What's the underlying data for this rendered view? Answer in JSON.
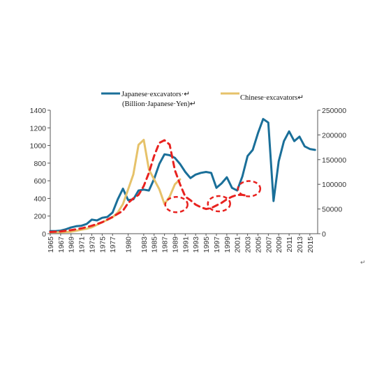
{
  "chart_data": {
    "type": "line",
    "legend": {
      "japanese_label": "Japanese·excavators·↵",
      "japanese_sublabel": "(Billion·Japanese·Yen)↵",
      "chinese_label": "Chinese·excavators↵",
      "placement": "top"
    },
    "categories": [
      "1965",
      "1967",
      "1969",
      "1971",
      "1973",
      "1975",
      "1977",
      "1980",
      "1983",
      "1985",
      "1987",
      "1989",
      "1991",
      "1993",
      "1995",
      "1997",
      "1999",
      "2001",
      "2003",
      "2005",
      "2007",
      "2009",
      "2011",
      "2013",
      "2015"
    ],
    "y_left": {
      "min": 0,
      "max": 1400,
      "ticks": [
        "0",
        "200",
        "400",
        "600",
        "800",
        "1000",
        "1200",
        "1400"
      ]
    },
    "y_right": {
      "min": 0,
      "max": 250000,
      "ticks": [
        "0",
        "50000",
        "100000",
        "150000",
        "200000",
        "250000"
      ]
    },
    "grid": false,
    "series": [
      {
        "name": "Japanese excavators (Billion Japanese Yen)",
        "axis": "left",
        "color": "#1a6f99",
        "x": [
          1965,
          1966,
          1967,
          1968,
          1969,
          1970,
          1971,
          1972,
          1973,
          1974,
          1975,
          1976,
          1977,
          1978,
          1979,
          1980,
          1981,
          1982,
          1983,
          1984,
          1985,
          1986,
          1987,
          1988,
          1989,
          1990,
          1991,
          1992,
          1993,
          1994,
          1995,
          1996,
          1997,
          1998,
          1999,
          2000,
          2001,
          2002,
          2003,
          2004,
          2005,
          2006,
          2007,
          2008,
          2009,
          2010,
          2011,
          2012,
          2013,
          2014,
          2015,
          2016
        ],
        "values": [
          30,
          30,
          35,
          50,
          70,
          85,
          90,
          110,
          160,
          150,
          180,
          190,
          240,
          390,
          510,
          380,
          390,
          490,
          500,
          490,
          620,
          790,
          900,
          890,
          860,
          790,
          700,
          630,
          670,
          690,
          700,
          690,
          520,
          570,
          640,
          520,
          490,
          650,
          880,
          950,
          1140,
          1300,
          1260,
          370,
          820,
          1050,
          1160,
          1050,
          1100,
          990,
          960,
          950
        ]
      },
      {
        "name": "Chinese excavators",
        "axis": "right",
        "color": "#e6c26a",
        "x": [
          1965,
          1966,
          1967,
          1968,
          1969,
          1970,
          1971,
          1972,
          1973,
          1974,
          1975,
          1976,
          1977,
          1978,
          1979,
          1980,
          1981,
          1982,
          1983,
          1984,
          1985,
          1986,
          1987,
          1988,
          1989,
          1990
        ],
        "values": [
          3000,
          3000,
          3000,
          3500,
          4000,
          6000,
          8000,
          10000,
          13000,
          18000,
          23000,
          28000,
          33000,
          43000,
          60000,
          90000,
          120000,
          180000,
          190000,
          130000,
          110000,
          90000,
          60000,
          75000,
          100000,
          110000
        ]
      },
      {
        "name": "",
        "axis": "left",
        "color": "#e8221f",
        "dashed": true,
        "x": [
          1965,
          1967,
          1969,
          1971,
          1973,
          1975,
          1977,
          1979,
          1980,
          1981,
          1982,
          1983,
          1984,
          1985,
          1986,
          1987,
          1988,
          1989,
          1990,
          1991,
          1992,
          1993,
          1994,
          1995,
          1996,
          1997,
          1998,
          1999,
          2000,
          2001,
          2002,
          2003
        ],
        "values": [
          20,
          25,
          40,
          60,
          90,
          130,
          190,
          260,
          350,
          400,
          440,
          540,
          690,
          880,
          1030,
          1060,
          1010,
          720,
          560,
          420,
          380,
          330,
          300,
          280,
          290,
          320,
          350,
          390,
          420,
          440,
          440,
          430
        ]
      }
    ],
    "annotations": [
      {
        "type": "dashed-ellipse",
        "color": "#e8221f",
        "x": 1989.3,
        "y": 330
      },
      {
        "type": "dashed-ellipse",
        "color": "#e8221f",
        "x": 1997.5,
        "y": 340
      },
      {
        "type": "dashed-ellipse",
        "color": "#e8221f",
        "x": 2003.3,
        "y": 510
      }
    ]
  },
  "corner_mark": "↵"
}
